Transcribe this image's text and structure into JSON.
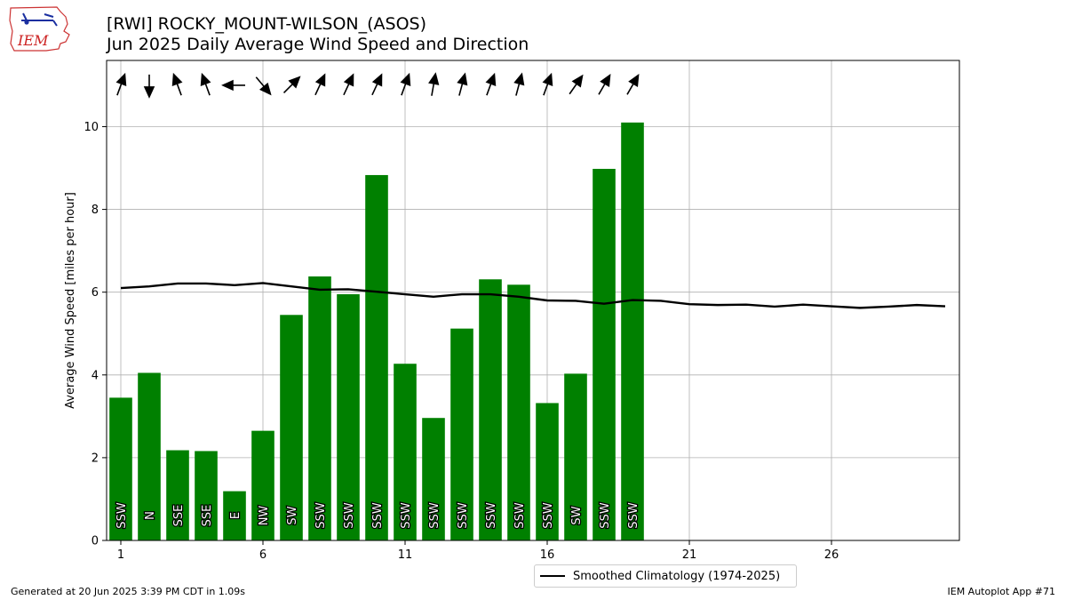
{
  "header": {
    "title": "[RWI] ROCKY_MOUNT-WILSON_(ASOS)",
    "subtitle": "Jun 2025 Daily Average Wind Speed and Direction"
  },
  "logo": {
    "text": "IEM",
    "icon": "iem-iowa-state-logo-icon",
    "color": "#cc2222"
  },
  "footer": {
    "generated": "Generated at 20 Jun 2025 3:39 PM CDT in 1.09s",
    "app": "IEM Autoplot App #71"
  },
  "legend": {
    "label": "Smoothed Climatology (1974-2025)"
  },
  "colors": {
    "bar": "#008000",
    "line": "#000000",
    "grid": "#b0b0b0",
    "label_text": "#ffffff"
  },
  "chart_data": {
    "type": "bar",
    "title": "[RWI] ROCKY_MOUNT-WILSON_(ASOS)",
    "subtitle": "Jun 2025 Daily Average Wind Speed and Direction",
    "xlabel": "",
    "ylabel": "Average Wind Speed [miles per hour]",
    "xlim": [
      0.5,
      30.5
    ],
    "ylim": [
      0,
      11.6
    ],
    "xticks": [
      1,
      6,
      11,
      16,
      21,
      26
    ],
    "yticks": [
      0,
      2,
      4,
      6,
      8,
      10
    ],
    "grid": true,
    "legend_position": "bottom-center",
    "bars": {
      "days": [
        1,
        2,
        3,
        4,
        5,
        6,
        7,
        8,
        9,
        10,
        11,
        12,
        13,
        14,
        15,
        16,
        17,
        18,
        19
      ],
      "values": [
        3.45,
        4.05,
        2.18,
        2.16,
        1.19,
        2.65,
        5.45,
        6.38,
        5.95,
        8.83,
        4.27,
        2.96,
        5.12,
        6.31,
        6.18,
        3.32,
        4.03,
        8.98,
        10.1
      ],
      "direction_labels": [
        "SSW",
        "N",
        "SSE",
        "SSE",
        "E",
        "NW",
        "SW",
        "SSW",
        "SSW",
        "SSW",
        "SSW",
        "SSW",
        "SSW",
        "SSW",
        "SSW",
        "SSW",
        "SW",
        "SSW",
        "SSW"
      ],
      "direction_degrees": [
        200,
        360,
        160,
        160,
        90,
        320,
        225,
        205,
        205,
        205,
        200,
        190,
        195,
        200,
        195,
        200,
        215,
        210,
        210
      ]
    },
    "series": [
      {
        "name": "Smoothed Climatology (1974-2025)",
        "x": [
          1,
          2,
          3,
          4,
          5,
          6,
          7,
          8,
          9,
          10,
          11,
          12,
          13,
          14,
          15,
          16,
          17,
          18,
          19,
          20,
          21,
          22,
          23,
          24,
          25,
          26,
          27,
          28,
          29,
          30
        ],
        "values": [
          6.1,
          6.14,
          6.21,
          6.21,
          6.17,
          6.22,
          6.14,
          6.06,
          6.07,
          6.01,
          5.95,
          5.89,
          5.95,
          5.95,
          5.89,
          5.8,
          5.79,
          5.72,
          5.81,
          5.79,
          5.71,
          5.69,
          5.7,
          5.65,
          5.7,
          5.66,
          5.62,
          5.65,
          5.69,
          5.66
        ]
      }
    ]
  }
}
